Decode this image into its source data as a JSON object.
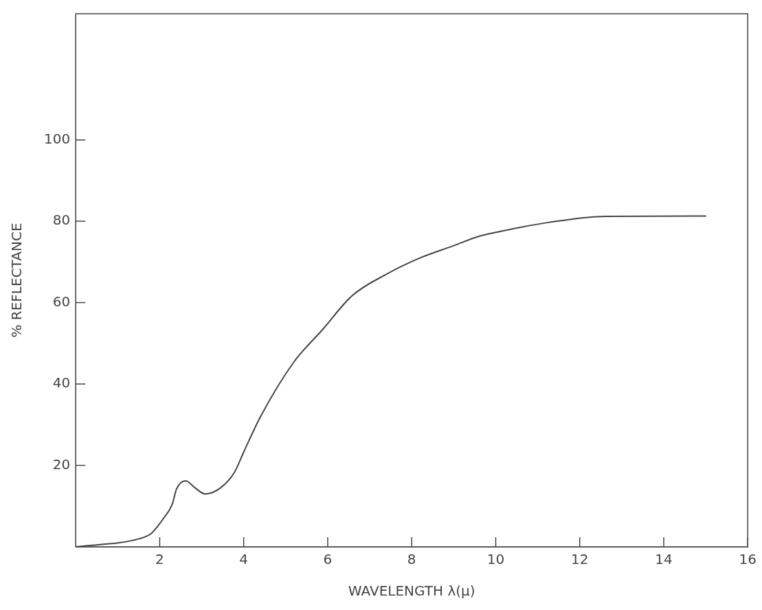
{
  "chart_data": {
    "type": "line",
    "xlabel": "WAVELENGTH λ(μ)",
    "ylabel": "% REFLECTANCE",
    "xlim": [
      0,
      16
    ],
    "ylim": [
      0,
      131
    ],
    "xticks": [
      2,
      4,
      6,
      8,
      10,
      12,
      14,
      16
    ],
    "yticks": [
      20,
      40,
      60,
      80,
      100
    ],
    "grid": false,
    "legend": false,
    "marker": "none",
    "line_style": "solid",
    "series": [
      {
        "color": "#444444",
        "x": [
          0,
          1.52,
          1.8,
          2.07,
          2.3,
          2.4,
          2.62,
          2.84,
          3.08,
          3.45,
          3.78,
          4.0,
          4.4,
          5.2,
          5.87,
          6.58,
          7.4,
          8.2,
          9.0,
          9.6,
          10.1,
          11.25,
          12.6,
          15.0
        ],
        "values": [
          0,
          2,
          3.3,
          6.7,
          10.5,
          14.2,
          16.2,
          14.5,
          13,
          14.5,
          18.3,
          23.3,
          32,
          45.5,
          53.3,
          61.7,
          67,
          71,
          74,
          76.3,
          77.5,
          79.7,
          81.2,
          81.3
        ]
      }
    ]
  }
}
